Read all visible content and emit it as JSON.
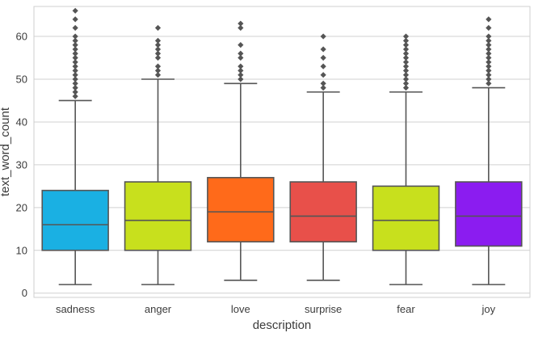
{
  "chart_data": {
    "type": "box",
    "title": "",
    "xlabel": "description",
    "ylabel": "text_word_count",
    "ylim": [
      -1,
      67
    ],
    "yticks": [
      0,
      10,
      20,
      30,
      40,
      50,
      60
    ],
    "grid": true,
    "categories": [
      "sadness",
      "anger",
      "love",
      "surprise",
      "fear",
      "joy"
    ],
    "colors": [
      "#1ab0e3",
      "#c8e01d",
      "#ff6a1a",
      "#e8504a",
      "#c8e01d",
      "#8b1cf0"
    ],
    "boxes": [
      {
        "category": "sadness",
        "whisker_low": 2,
        "q1": 10,
        "median": 16,
        "q3": 24,
        "whisker_high": 45,
        "outliers": [
          46,
          47,
          48,
          49,
          50,
          51,
          52,
          53,
          54,
          55,
          56,
          57,
          58,
          59,
          60,
          62,
          64,
          66
        ]
      },
      {
        "category": "anger",
        "whisker_low": 2,
        "q1": 10,
        "median": 17,
        "q3": 26,
        "whisker_high": 50,
        "outliers": [
          51,
          52,
          53,
          55,
          56,
          57,
          58,
          59,
          62
        ]
      },
      {
        "category": "love",
        "whisker_low": 3,
        "q1": 12,
        "median": 19,
        "q3": 27,
        "whisker_high": 49,
        "outliers": [
          50,
          51,
          52,
          53,
          55,
          56,
          58,
          62,
          63
        ]
      },
      {
        "category": "surprise",
        "whisker_low": 3,
        "q1": 12,
        "median": 18,
        "q3": 26,
        "whisker_high": 47,
        "outliers": [
          48,
          49,
          51,
          53,
          55,
          57,
          60
        ]
      },
      {
        "category": "fear",
        "whisker_low": 2,
        "q1": 10,
        "median": 17,
        "q3": 25,
        "whisker_high": 47,
        "outliers": [
          48,
          49,
          50,
          51,
          52,
          53,
          54,
          55,
          56,
          57,
          58,
          59,
          60
        ]
      },
      {
        "category": "joy",
        "whisker_low": 2,
        "q1": 11,
        "median": 18,
        "q3": 26,
        "whisker_high": 48,
        "outliers": [
          49,
          50,
          51,
          52,
          53,
          54,
          55,
          56,
          57,
          58,
          59,
          60,
          62,
          64
        ]
      }
    ]
  }
}
